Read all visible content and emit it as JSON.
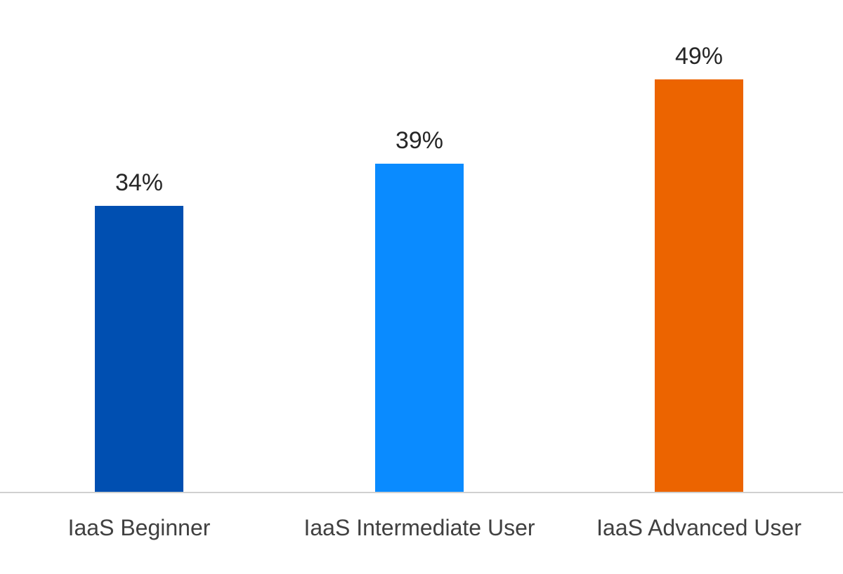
{
  "chart_data": {
    "type": "bar",
    "categories": [
      "IaaS Beginner",
      "IaaS Intermediate User",
      "IaaS Advanced User"
    ],
    "values": [
      34,
      39,
      49
    ],
    "value_labels": [
      "34%",
      "39%",
      "49%"
    ],
    "bar_colors": [
      "#004fb1",
      "#0a8bff",
      "#ec6400"
    ],
    "ylim": [
      0,
      100
    ],
    "grid": false,
    "legend": "none",
    "title": "",
    "xlabel": "",
    "ylabel": ""
  }
}
